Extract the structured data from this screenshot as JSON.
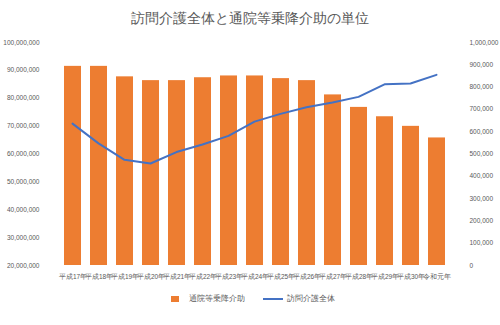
{
  "chart_data": {
    "type": "bar",
    "title": "訪問介護全体と通院等乗降介助の単位",
    "categories": [
      "平成17年",
      "平成18年",
      "平成19年",
      "平成20年",
      "平成21年",
      "平成22年",
      "平成23年",
      "平成24年",
      "平成25年",
      "平成26年",
      "平成27年",
      "平成28年",
      "平成29年",
      "平成30年",
      "令和元年"
    ],
    "series": [
      {
        "name": "通院等乗降介助",
        "type": "bar",
        "color": "#ed7d31",
        "axis": "y2",
        "values": [
          893000,
          893000,
          846000,
          829000,
          829000,
          842000,
          850000,
          850000,
          838000,
          829000,
          765000,
          709000,
          667000,
          624000,
          572000
        ]
      },
      {
        "name": "訪問介護全体",
        "type": "line",
        "color": "#4472c4",
        "values": [
          70900000,
          63800000,
          57900000,
          56600000,
          60700000,
          63400000,
          66500000,
          71600000,
          74400000,
          76800000,
          78500000,
          80500000,
          85000000,
          85300000,
          88400000
        ]
      }
    ],
    "ylim": [
      20000000,
      100000000
    ],
    "yticks": [
      {
        "value": 20000000,
        "label": "20,000,000"
      },
      {
        "value": 30000000,
        "label": "30,000,000"
      },
      {
        "value": 40000000,
        "label": "40,000,000"
      },
      {
        "value": 50000000,
        "label": "50,000,000"
      },
      {
        "value": 60000000,
        "label": "60,000,000"
      },
      {
        "value": 70000000,
        "label": "70,000,000"
      },
      {
        "value": 80000000,
        "label": "80,000,000"
      },
      {
        "value": 90000000,
        "label": "90,000,000"
      },
      {
        "value": 100000000,
        "label": "100,000,000"
      }
    ],
    "y2lim": [
      0,
      1000000
    ],
    "y2ticks": [
      0,
      {
        "value": 100000,
        "label": "100,000"
      },
      {
        "value": 200000,
        "label": "200,000"
      },
      {
        "value": 300000,
        "label": "300,000"
      },
      {
        "value": 400000,
        "label": "400,000"
      },
      {
        "value": 500000,
        "label": "500,000"
      },
      {
        "value": 600000,
        "label": "600,000"
      },
      {
        "value": 700000,
        "label": "700,000"
      },
      {
        "value": 800000,
        "label": "800,000"
      },
      {
        "value": 900000,
        "label": "900,000"
      },
      {
        "value": 1000000,
        "label": "1,000,000"
      }
    ],
    "legend": "bottom",
    "grid": false
  }
}
